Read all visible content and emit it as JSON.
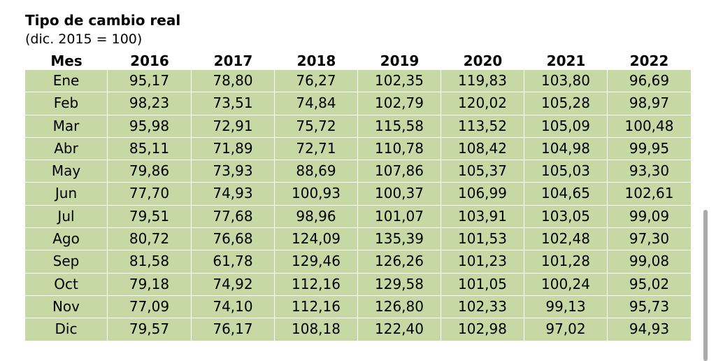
{
  "title": "Tipo de cambio real",
  "subtitle": "(dic. 2015 = 100)",
  "table": {
    "headers": [
      "Mes",
      "2016",
      "2017",
      "2018",
      "2019",
      "2020",
      "2021",
      "2022"
    ],
    "rows": [
      [
        "Ene",
        "95,17",
        "78,80",
        "76,27",
        "102,35",
        "119,83",
        "103,80",
        "96,69"
      ],
      [
        "Feb",
        "98,23",
        "73,51",
        "74,84",
        "102,79",
        "120,02",
        "105,28",
        "98,97"
      ],
      [
        "Mar",
        "95,98",
        "72,91",
        "75,72",
        "115,58",
        "113,52",
        "105,09",
        "100,48"
      ],
      [
        "Abr",
        "85,11",
        "71,89",
        "72,71",
        "110,78",
        "108,42",
        "104,98",
        "99,95"
      ],
      [
        "May",
        "79,86",
        "73,93",
        "88,69",
        "107,86",
        "105,37",
        "105,03",
        "93,30"
      ],
      [
        "Jun",
        "77,70",
        "74,93",
        "100,93",
        "100,37",
        "106,99",
        "104,65",
        "102,61"
      ],
      [
        "Jul",
        "79,51",
        "77,68",
        "98,96",
        "101,07",
        "103,91",
        "103,05",
        "99,09"
      ],
      [
        "Ago",
        "80,72",
        "76,68",
        "124,09",
        "135,39",
        "101,53",
        "102,48",
        "97,30"
      ],
      [
        "Sep",
        "81,58",
        "61,78",
        "129,46",
        "126,26",
        "101,23",
        "101,28",
        "99,08"
      ],
      [
        "Oct",
        "79,18",
        "74,92",
        "112,16",
        "129,58",
        "101,05",
        "100,24",
        "95,02"
      ],
      [
        "Nov",
        "77,09",
        "74,10",
        "112,16",
        "126,80",
        "102,33",
        "99,13",
        "95,73"
      ],
      [
        "Dic",
        "79,57",
        "76,17",
        "108,18",
        "122,40",
        "102,98",
        "97,02",
        "94,93"
      ]
    ]
  },
  "colors": {
    "table_fill": "#c6d9a4",
    "scrollbar": "#aaaaaa"
  }
}
